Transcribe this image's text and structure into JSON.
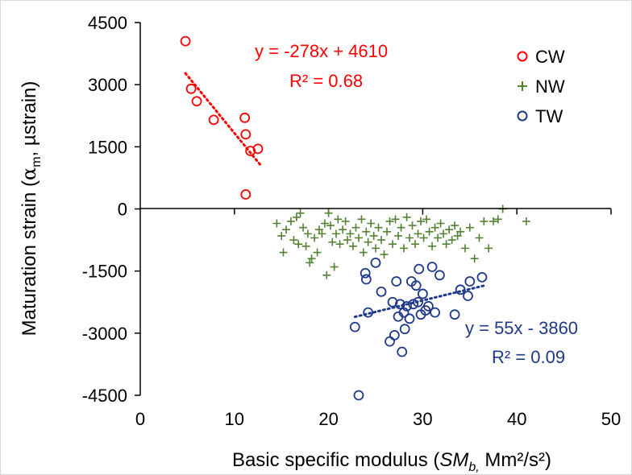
{
  "chart_data": {
    "type": "scatter",
    "xlabel": {
      "prefix": "Basic specific modulus (",
      "sym": "SM",
      "sub": "b,",
      "suffix": " Mm²/s²)"
    },
    "ylabel": {
      "prefix": "Maturation strain (",
      "sym": "α",
      "sub": "m",
      "suffix": ", µstrain)"
    },
    "xlim": [
      0,
      50
    ],
    "ylim": [
      -4500,
      4500
    ],
    "x_ticks": [
      "0",
      "10",
      "20",
      "30",
      "40",
      "50"
    ],
    "y_ticks": [
      "4500",
      "3000",
      "1500",
      "0",
      "-1500",
      "-3000",
      "-4500"
    ],
    "grid": false,
    "legend_position": "top-right",
    "colors": {
      "CW": "#ff0000",
      "NW": "#548235",
      "TW": "#1f3a8a"
    },
    "series": [
      {
        "name": "CW",
        "marker": "circle",
        "points": [
          [
            4.8,
            4050
          ],
          [
            5.4,
            2900
          ],
          [
            6.0,
            2600
          ],
          [
            7.8,
            2150
          ],
          [
            11.1,
            2200
          ],
          [
            11.2,
            1800
          ],
          [
            11.7,
            1400
          ],
          [
            12.5,
            1450
          ],
          [
            11.2,
            350
          ]
        ],
        "trendline": {
          "x": [
            4.8,
            12.8
          ],
          "equation": "y = -278x + 4610",
          "r2": "R² = 0.68"
        }
      },
      {
        "name": "NW",
        "marker": "plus",
        "points": [
          [
            14.5,
            -350
          ],
          [
            15.0,
            -650
          ],
          [
            15.2,
            -1050
          ],
          [
            15.5,
            -500
          ],
          [
            16.0,
            -300
          ],
          [
            16.3,
            -750
          ],
          [
            16.6,
            -200
          ],
          [
            16.8,
            -850
          ],
          [
            17.0,
            -100
          ],
          [
            17.3,
            -450
          ],
          [
            17.6,
            -900
          ],
          [
            17.8,
            -600
          ],
          [
            18.0,
            -1300
          ],
          [
            18.2,
            -1200
          ],
          [
            18.5,
            -700
          ],
          [
            18.8,
            -1050
          ],
          [
            19.0,
            -500
          ],
          [
            19.3,
            -600
          ],
          [
            19.6,
            -350
          ],
          [
            19.8,
            -1600
          ],
          [
            20.0,
            -100
          ],
          [
            20.2,
            -400
          ],
          [
            20.4,
            -800
          ],
          [
            20.6,
            -1400
          ],
          [
            20.8,
            -600
          ],
          [
            21.0,
            -250
          ],
          [
            21.2,
            -850
          ],
          [
            21.5,
            -500
          ],
          [
            21.8,
            -300
          ],
          [
            22.0,
            -750
          ],
          [
            22.3,
            -600
          ],
          [
            22.6,
            -900
          ],
          [
            22.9,
            -450
          ],
          [
            23.2,
            -700
          ],
          [
            23.5,
            -250
          ],
          [
            23.7,
            -1050
          ],
          [
            24.0,
            -550
          ],
          [
            24.2,
            -800
          ],
          [
            24.5,
            -350
          ],
          [
            24.8,
            -650
          ],
          [
            25.0,
            -950
          ],
          [
            25.3,
            -450
          ],
          [
            25.6,
            -750
          ],
          [
            25.9,
            -1100
          ],
          [
            26.2,
            -550
          ],
          [
            26.5,
            -300
          ],
          [
            26.8,
            -850
          ],
          [
            27.1,
            -250
          ],
          [
            27.4,
            -650
          ],
          [
            27.7,
            -450
          ],
          [
            28.0,
            -950
          ],
          [
            28.3,
            -200
          ],
          [
            28.6,
            -700
          ],
          [
            28.9,
            -400
          ],
          [
            29.2,
            -850
          ],
          [
            29.5,
            -600
          ],
          [
            29.8,
            -300
          ],
          [
            30.1,
            -700
          ],
          [
            30.4,
            -250
          ],
          [
            30.7,
            -550
          ],
          [
            31.0,
            -900
          ],
          [
            31.3,
            -450
          ],
          [
            31.6,
            -700
          ],
          [
            31.9,
            -350
          ],
          [
            32.2,
            -600
          ],
          [
            32.5,
            -850
          ],
          [
            32.8,
            -500
          ],
          [
            33.1,
            -750
          ],
          [
            33.4,
            -400
          ],
          [
            33.7,
            -650
          ],
          [
            34.0,
            -550
          ],
          [
            34.5,
            -950
          ],
          [
            35.0,
            -450
          ],
          [
            35.5,
            -1200
          ],
          [
            36.0,
            -700
          ],
          [
            36.5,
            -300
          ],
          [
            37.0,
            -950
          ],
          [
            37.5,
            -300
          ],
          [
            38.0,
            -250
          ],
          [
            38.5,
            0
          ],
          [
            41.0,
            -300
          ]
        ]
      },
      {
        "name": "TW",
        "marker": "circle",
        "points": [
          [
            22.8,
            -2850
          ],
          [
            23.9,
            -1550
          ],
          [
            24.0,
            -1700
          ],
          [
            24.2,
            -2500
          ],
          [
            25.0,
            -1300
          ],
          [
            25.6,
            -2000
          ],
          [
            26.5,
            -3200
          ],
          [
            26.8,
            -2250
          ],
          [
            27.0,
            -3050
          ],
          [
            27.2,
            -1750
          ],
          [
            27.4,
            -2600
          ],
          [
            27.6,
            -2300
          ],
          [
            27.8,
            -3450
          ],
          [
            28.0,
            -2500
          ],
          [
            28.1,
            -2900
          ],
          [
            28.3,
            -2350
          ],
          [
            28.6,
            -2650
          ],
          [
            28.8,
            -1750
          ],
          [
            29.0,
            -2300
          ],
          [
            29.3,
            -1850
          ],
          [
            29.5,
            -2250
          ],
          [
            29.6,
            -1450
          ],
          [
            29.8,
            -2550
          ],
          [
            30.0,
            -2050
          ],
          [
            30.3,
            -2450
          ],
          [
            30.6,
            -2350
          ],
          [
            31.0,
            -1400
          ],
          [
            31.3,
            -2500
          ],
          [
            31.8,
            -1600
          ],
          [
            33.4,
            -2550
          ],
          [
            34.0,
            -1950
          ],
          [
            34.8,
            -2100
          ],
          [
            35.0,
            -1750
          ],
          [
            36.3,
            -1650
          ],
          [
            23.2,
            -4500
          ]
        ],
        "trendline": {
          "x": [
            22.8,
            36.5
          ],
          "equation": "y = 55x - 3860",
          "r2": "R² = 0.09"
        }
      }
    ]
  }
}
